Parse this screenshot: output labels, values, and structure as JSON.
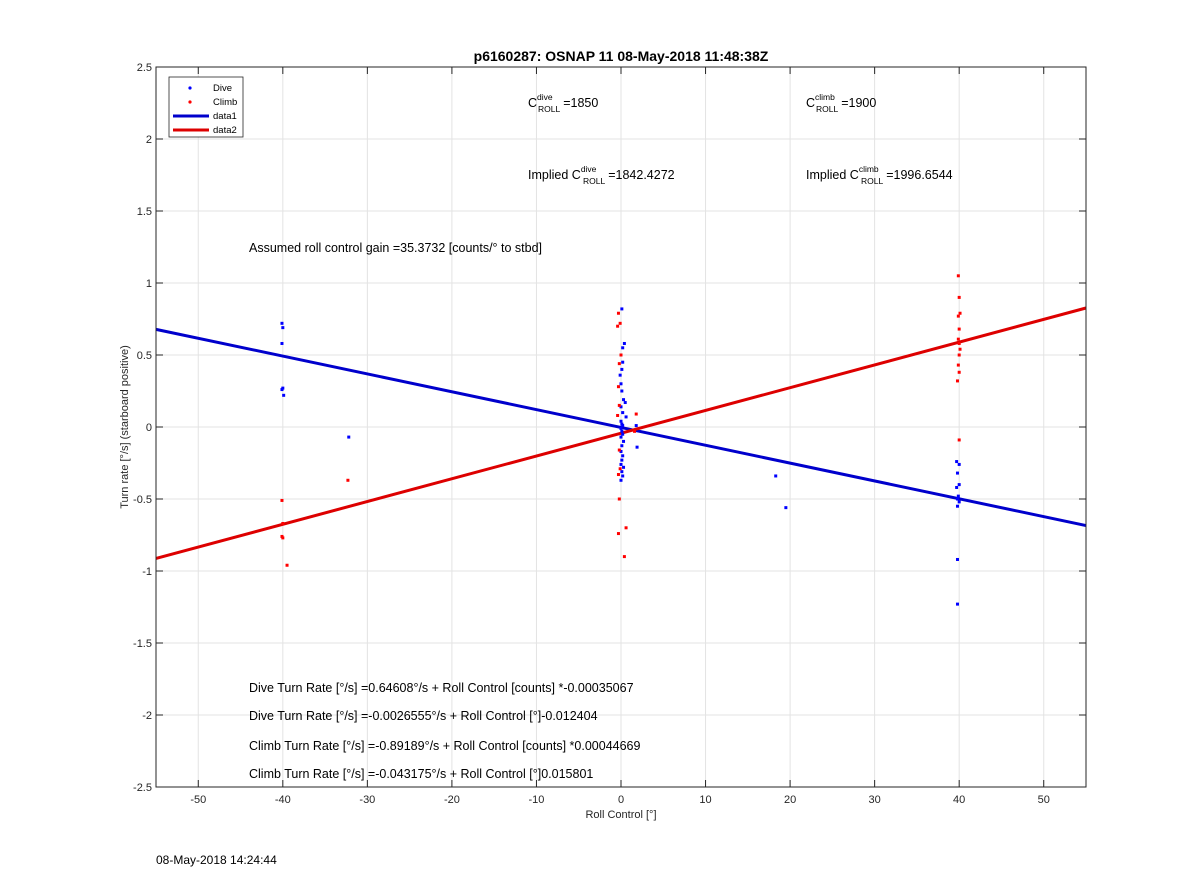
{
  "chart_data": {
    "type": "scatter",
    "title": "p6160287: OSNAP 11 08-May-2018 11:48:38Z",
    "xlabel": "Roll Control [°]",
    "ylabel": "Turn rate [°/s] (starboard positive)",
    "xlim": [
      -55,
      55
    ],
    "ylim": [
      -2.5,
      2.5
    ],
    "xticks": [
      -50,
      -40,
      -30,
      -20,
      -10,
      0,
      10,
      20,
      30,
      40,
      50
    ],
    "yticks": [
      -2.5,
      -2,
      -1.5,
      -1,
      -0.5,
      0,
      0.5,
      1,
      1.5,
      2,
      2.5
    ],
    "grid": true,
    "legend_position": "top-left",
    "legend": [
      {
        "label": "Dive",
        "kind": "marker",
        "color": "#0000ff"
      },
      {
        "label": "Climb",
        "kind": "marker",
        "color": "#ff0000"
      },
      {
        "label": "data1",
        "kind": "line",
        "color": "#0000cc"
      },
      {
        "label": "data2",
        "kind": "line",
        "color": "#dd0000"
      }
    ],
    "series": [
      {
        "name": "Dive",
        "mode": "markers",
        "color": "#0000ff",
        "points": [
          [
            -40.1,
            0.72
          ],
          [
            -40.0,
            0.69
          ],
          [
            -40.1,
            0.58
          ],
          [
            -40.0,
            0.27
          ],
          [
            -40.1,
            0.26
          ],
          [
            -39.9,
            0.22
          ],
          [
            -32.2,
            -0.07
          ],
          [
            0.1,
            0.82
          ],
          [
            0.4,
            0.58
          ],
          [
            0.2,
            0.55
          ],
          [
            0.0,
            0.5
          ],
          [
            0.2,
            0.45
          ],
          [
            0.1,
            0.4
          ],
          [
            -0.1,
            0.36
          ],
          [
            0.0,
            0.3
          ],
          [
            0.1,
            0.25
          ],
          [
            0.3,
            0.19
          ],
          [
            0.5,
            0.17
          ],
          [
            0.0,
            0.14
          ],
          [
            0.2,
            0.1
          ],
          [
            0.6,
            0.07
          ],
          [
            0.0,
            0.04
          ],
          [
            0.1,
            0.02
          ],
          [
            0.2,
            0.01
          ],
          [
            0.0,
            -0.01
          ],
          [
            0.1,
            -0.03
          ],
          [
            0.2,
            -0.05
          ],
          [
            0.0,
            -0.07
          ],
          [
            0.3,
            -0.1
          ],
          [
            0.1,
            -0.13
          ],
          [
            0.0,
            -0.17
          ],
          [
            0.2,
            -0.2
          ],
          [
            0.1,
            -0.23
          ],
          [
            0.0,
            -0.26
          ],
          [
            0.3,
            -0.28
          ],
          [
            0.1,
            -0.31
          ],
          [
            0.2,
            -0.34
          ],
          [
            0.0,
            -0.37
          ],
          [
            1.9,
            -0.14
          ],
          [
            1.8,
            0.01
          ],
          [
            18.3,
            -0.34
          ],
          [
            19.5,
            -0.56
          ],
          [
            39.7,
            -0.24
          ],
          [
            40.0,
            -0.26
          ],
          [
            39.8,
            -0.32
          ],
          [
            40.0,
            -0.4
          ],
          [
            39.7,
            -0.42
          ],
          [
            39.9,
            -0.48
          ],
          [
            39.8,
            -0.5
          ],
          [
            40.0,
            -0.52
          ],
          [
            39.8,
            -0.55
          ],
          [
            39.8,
            -0.92
          ],
          [
            39.8,
            -1.23
          ]
        ]
      },
      {
        "name": "Climb",
        "mode": "markers",
        "color": "#ff0000",
        "points": [
          [
            -40.1,
            -0.51
          ],
          [
            -40.0,
            -0.67
          ],
          [
            -40.1,
            -0.76
          ],
          [
            -40.0,
            -0.77
          ],
          [
            -39.5,
            -0.96
          ],
          [
            -32.3,
            -0.37
          ],
          [
            -0.3,
            0.79
          ],
          [
            -0.1,
            0.72
          ],
          [
            -0.4,
            0.7
          ],
          [
            0.0,
            0.5
          ],
          [
            -0.2,
            0.44
          ],
          [
            -0.3,
            0.28
          ],
          [
            -0.2,
            0.15
          ],
          [
            -0.4,
            0.08
          ],
          [
            -0.2,
            -0.16
          ],
          [
            -0.1,
            -0.29
          ],
          [
            -0.3,
            -0.33
          ],
          [
            -0.2,
            -0.5
          ],
          [
            -0.3,
            -0.74
          ],
          [
            0.6,
            -0.7
          ],
          [
            0.4,
            -0.9
          ],
          [
            1.8,
            0.09
          ],
          [
            1.6,
            -0.03
          ],
          [
            39.9,
            1.05
          ],
          [
            40.0,
            0.9
          ],
          [
            40.1,
            0.79
          ],
          [
            39.9,
            0.77
          ],
          [
            40.0,
            0.68
          ],
          [
            39.9,
            0.61
          ],
          [
            40.0,
            0.58
          ],
          [
            40.1,
            0.54
          ],
          [
            40.0,
            0.5
          ],
          [
            39.9,
            0.43
          ],
          [
            40.0,
            0.38
          ],
          [
            39.8,
            0.32
          ],
          [
            40.0,
            -0.09
          ]
        ]
      },
      {
        "name": "data1",
        "mode": "line",
        "color": "#0000cc",
        "x": [
          -55,
          55
        ],
        "y": [
          0.67816,
          -0.68428
        ]
      },
      {
        "name": "data2",
        "mode": "line",
        "color": "#dd0000",
        "x": [
          -55,
          55
        ],
        "y": [
          -0.91273,
          0.82638
        ]
      }
    ],
    "annotations": {
      "c_dive": {
        "sym": "C",
        "sup": "dive",
        "sub": "ROLL",
        "value": "=1850"
      },
      "c_climb": {
        "sym": "C",
        "sup": "climb",
        "sub": "ROLL",
        "value": "=1900"
      },
      "implied_dive": {
        "prefix": "Implied ",
        "sym": "C",
        "sup": "dive",
        "sub": "ROLL",
        "value": "=1842.4272"
      },
      "implied_climb": {
        "prefix": "Implied ",
        "sym": "C",
        "sup": "climb",
        "sub": "ROLL",
        "value": "=1996.6544"
      },
      "gain": "Assumed roll control gain =35.3732 [counts/° to stbd]",
      "eq1": "Dive Turn Rate [°/s] =0.64608°/s + Roll Control [counts] *-0.00035067",
      "eq2": "Dive Turn Rate [°/s] =-0.0026555°/s + Roll Control [°]-0.012404",
      "eq3": "Climb Turn Rate [°/s] =-0.89189°/s + Roll Control [counts] *0.00044669",
      "eq4": "Climb Turn Rate [°/s] =-0.043175°/s + Roll Control [°]0.015801"
    }
  },
  "footer": {
    "timestamp": "08-May-2018 14:24:44"
  }
}
